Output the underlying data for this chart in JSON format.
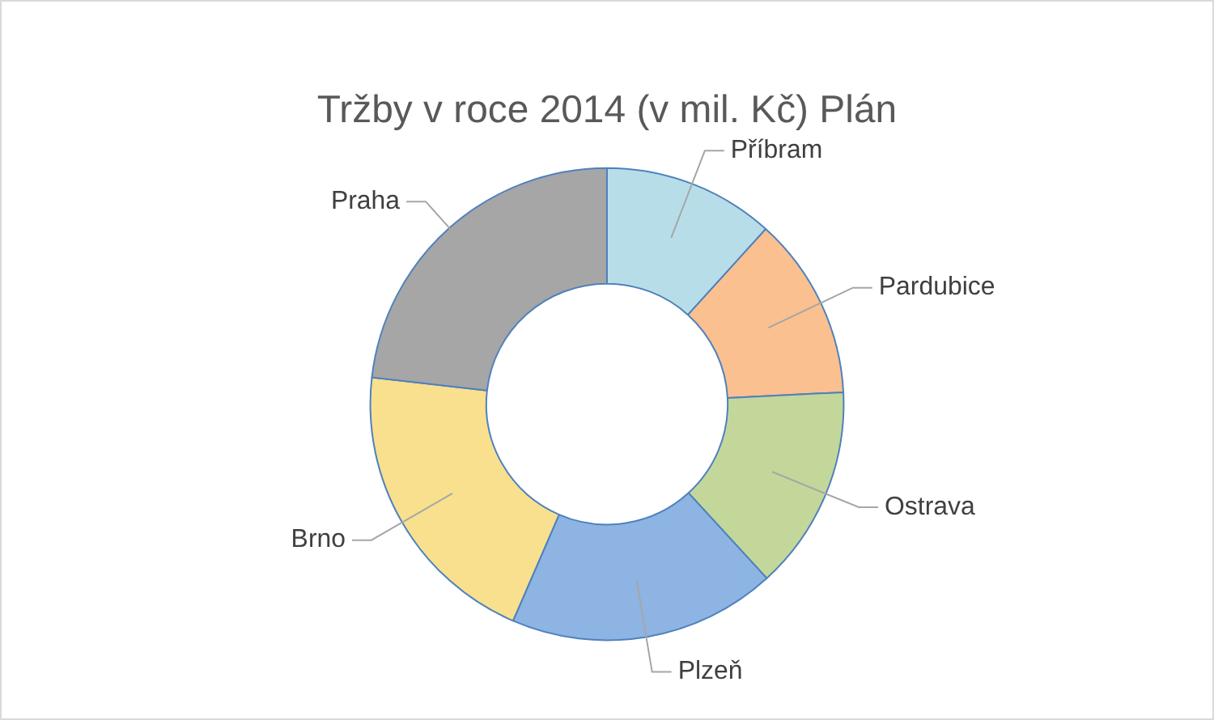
{
  "chart_data": {
    "type": "donut",
    "title": "Tržby v roce 2014 (v mil. Kč) Plán",
    "categories": [
      "Příbram",
      "Pardubice",
      "Ostrava",
      "Plzeň",
      "Brno",
      "Praha"
    ],
    "values": [
      11.7,
      12.5,
      14.0,
      18.3,
      20.3,
      23.2
    ],
    "colors": [
      "#b7dee8",
      "#fac090",
      "#c4d79b",
      "#8db4e2",
      "#f8e08e",
      "#a6a6a6"
    ],
    "legend": false
  }
}
